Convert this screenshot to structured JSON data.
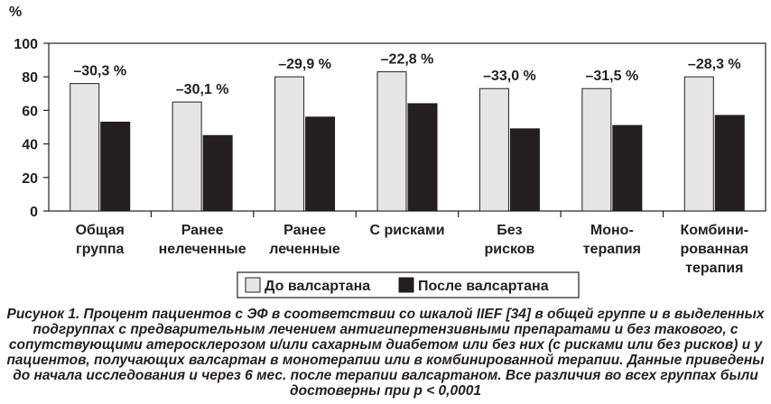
{
  "chart_data": {
    "type": "bar",
    "ylabel": "%",
    "ylim": [
      0,
      100
    ],
    "yticks": [
      0,
      20,
      40,
      60,
      80,
      100
    ],
    "categories": [
      [
        "Общая",
        "группа"
      ],
      [
        "Ранее",
        "нелеченные"
      ],
      [
        "Ранее",
        "леченные"
      ],
      [
        "С рисками"
      ],
      [
        "Без",
        "рисков"
      ],
      [
        "Моно-",
        "терапия"
      ],
      [
        "Комбини-",
        "рованная",
        "терапия"
      ]
    ],
    "series": [
      {
        "name": "До валсартана",
        "values": [
          76,
          65,
          80,
          83,
          73,
          73,
          80
        ],
        "color": "#e6e6e6"
      },
      {
        "name": "После валсартана",
        "values": [
          53,
          45,
          56,
          64,
          49,
          51,
          57
        ],
        "color": "#231f20"
      }
    ],
    "annotations": [
      "–30,3 %",
      "–30,1 %",
      "–29,9 %",
      "–22,8 %",
      "–33,0 %",
      "–31,5 %",
      "–28,3 %"
    ],
    "legend_position": "bottom"
  },
  "caption": "Рисунок 1. Процент пациентов с ЭФ в соответствии со шкалой IIEF [34] в общей группе и в выделенных подгруппах с предварительным лечением антигипертензивными препаратами и без такового, с сопутствующими атеросклерозом и/или сахарным диабетом или без них (с рисками или без рисков) и у пациентов, получающих валсартан в монотерапии или в комбинированной терапии. Данные приведены до начала исследования и через 6 мес. после терапии валсартаном. Все различия во всех группах были достоверны при p < 0,0001"
}
